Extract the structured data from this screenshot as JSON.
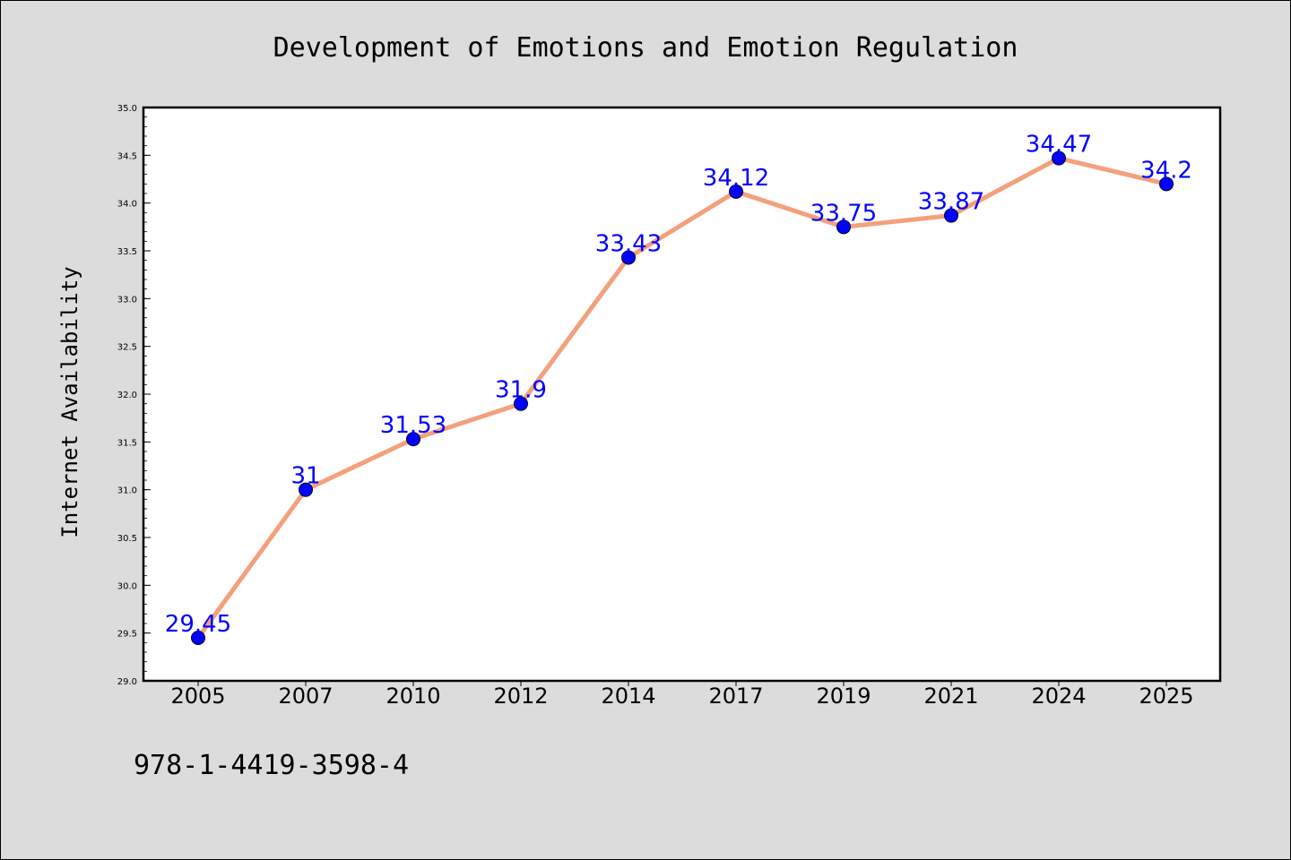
{
  "chart_data": {
    "type": "line",
    "title": "Development of Emotions and Emotion Regulation",
    "xlabel": "",
    "ylabel": "Internet Availability",
    "categories": [
      "2005",
      "2007",
      "2010",
      "2012",
      "2014",
      "2017",
      "2019",
      "2021",
      "2024",
      "2025"
    ],
    "series": [
      {
        "values": [
          29.45,
          31,
          31.53,
          31.9,
          33.43,
          34.12,
          33.75,
          33.87,
          34.47,
          34.2
        ]
      }
    ],
    "data_labels": [
      "29.45",
      "31",
      "31.53",
      "31.9",
      "33.43",
      "34.12",
      "33.75",
      "33.87",
      "34.47",
      "34.2"
    ],
    "ylim": [
      29.0,
      35.0
    ],
    "yticks": [
      "29.0",
      "29.5",
      "30.0",
      "30.5",
      "31.0",
      "31.5",
      "32.0",
      "32.5",
      "33.0",
      "33.5",
      "34.0",
      "34.5",
      "35.0"
    ],
    "grid": false,
    "legend": "none",
    "line_color": "#f4a07c",
    "marker_color": "#0000ff",
    "label_color": "#0000ff",
    "plot_background": "#ffffff",
    "figure_background": "#dcdcdc"
  },
  "footnote": "978-1-4419-3598-4"
}
